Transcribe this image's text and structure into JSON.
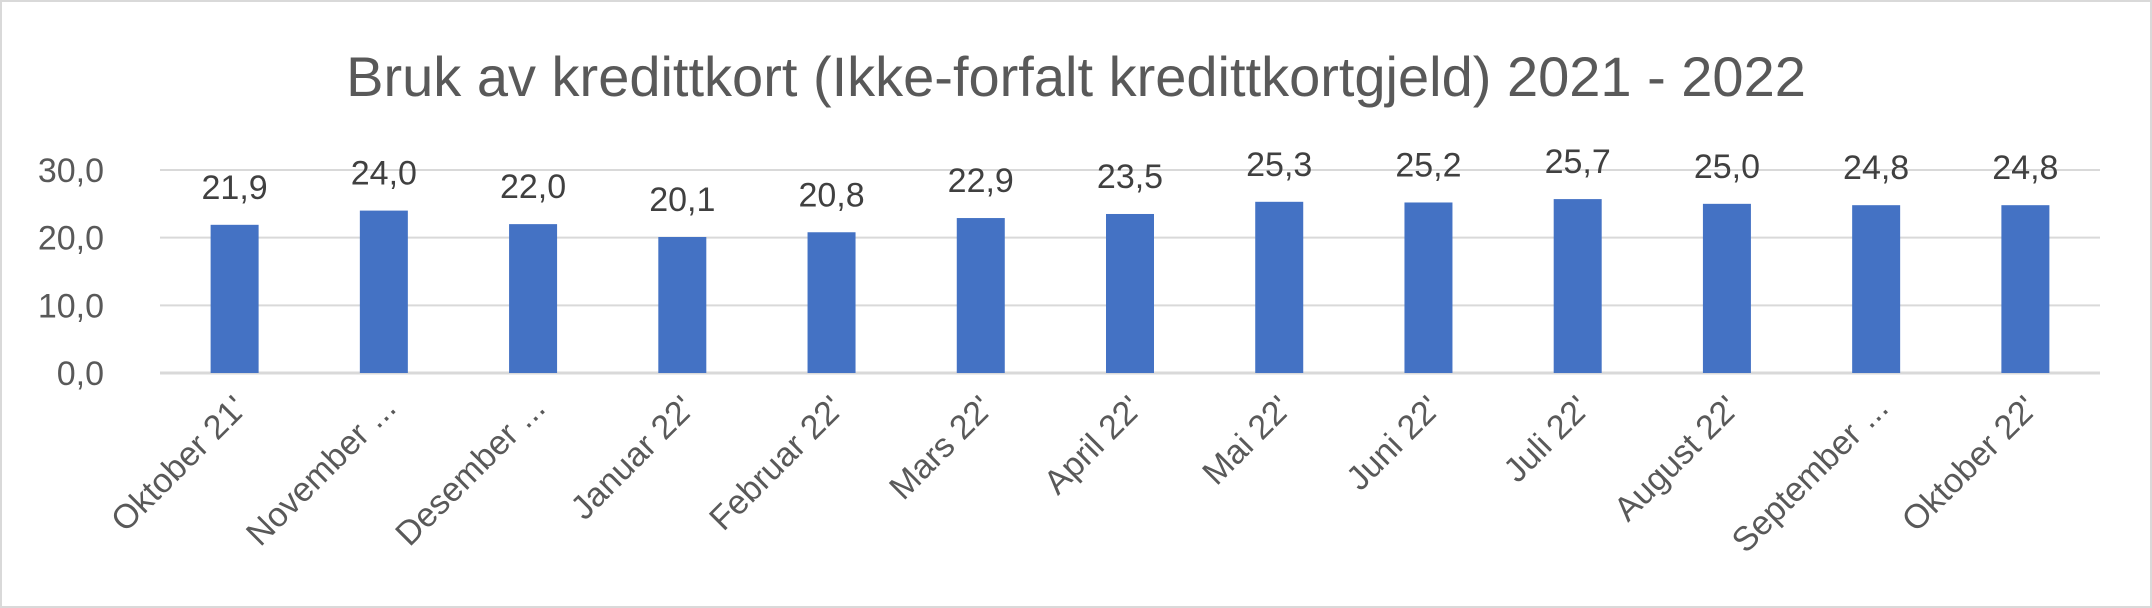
{
  "chart_data": {
    "type": "bar",
    "title": "Bruk av kredittkort (Ikke-forfalt kredittkortgjeld) 2021 - 2022",
    "xlabel": "",
    "ylabel": "",
    "categories": [
      "Oktober 21'",
      "November ...",
      "Desember ...",
      "Januar 22'",
      "Februar 22'",
      "Mars 22'",
      "April 22'",
      "Mai 22'",
      "Juni 22'",
      "Juli 22'",
      "August 22'",
      "September ...",
      "Oktober 22'"
    ],
    "values": [
      21.9,
      24.0,
      22.0,
      20.1,
      20.8,
      22.9,
      23.5,
      25.3,
      25.2,
      25.7,
      25.0,
      24.8,
      24.8
    ],
    "value_labels": [
      "21,9",
      "24,0",
      "22,0",
      "20,1",
      "20,8",
      "22,9",
      "23,5",
      "25,3",
      "25,2",
      "25,7",
      "25,0",
      "24,8",
      "24,8"
    ],
    "yticks": [
      0,
      10,
      20,
      30
    ],
    "ytick_labels": [
      "0,0",
      "10,0",
      "20,0",
      "30,0"
    ],
    "ylim": [
      0,
      30
    ],
    "grid": true,
    "legend": "none",
    "colors": {
      "bar": "#4472c4",
      "grid": "#d9d9d9",
      "text": "#595959"
    }
  }
}
